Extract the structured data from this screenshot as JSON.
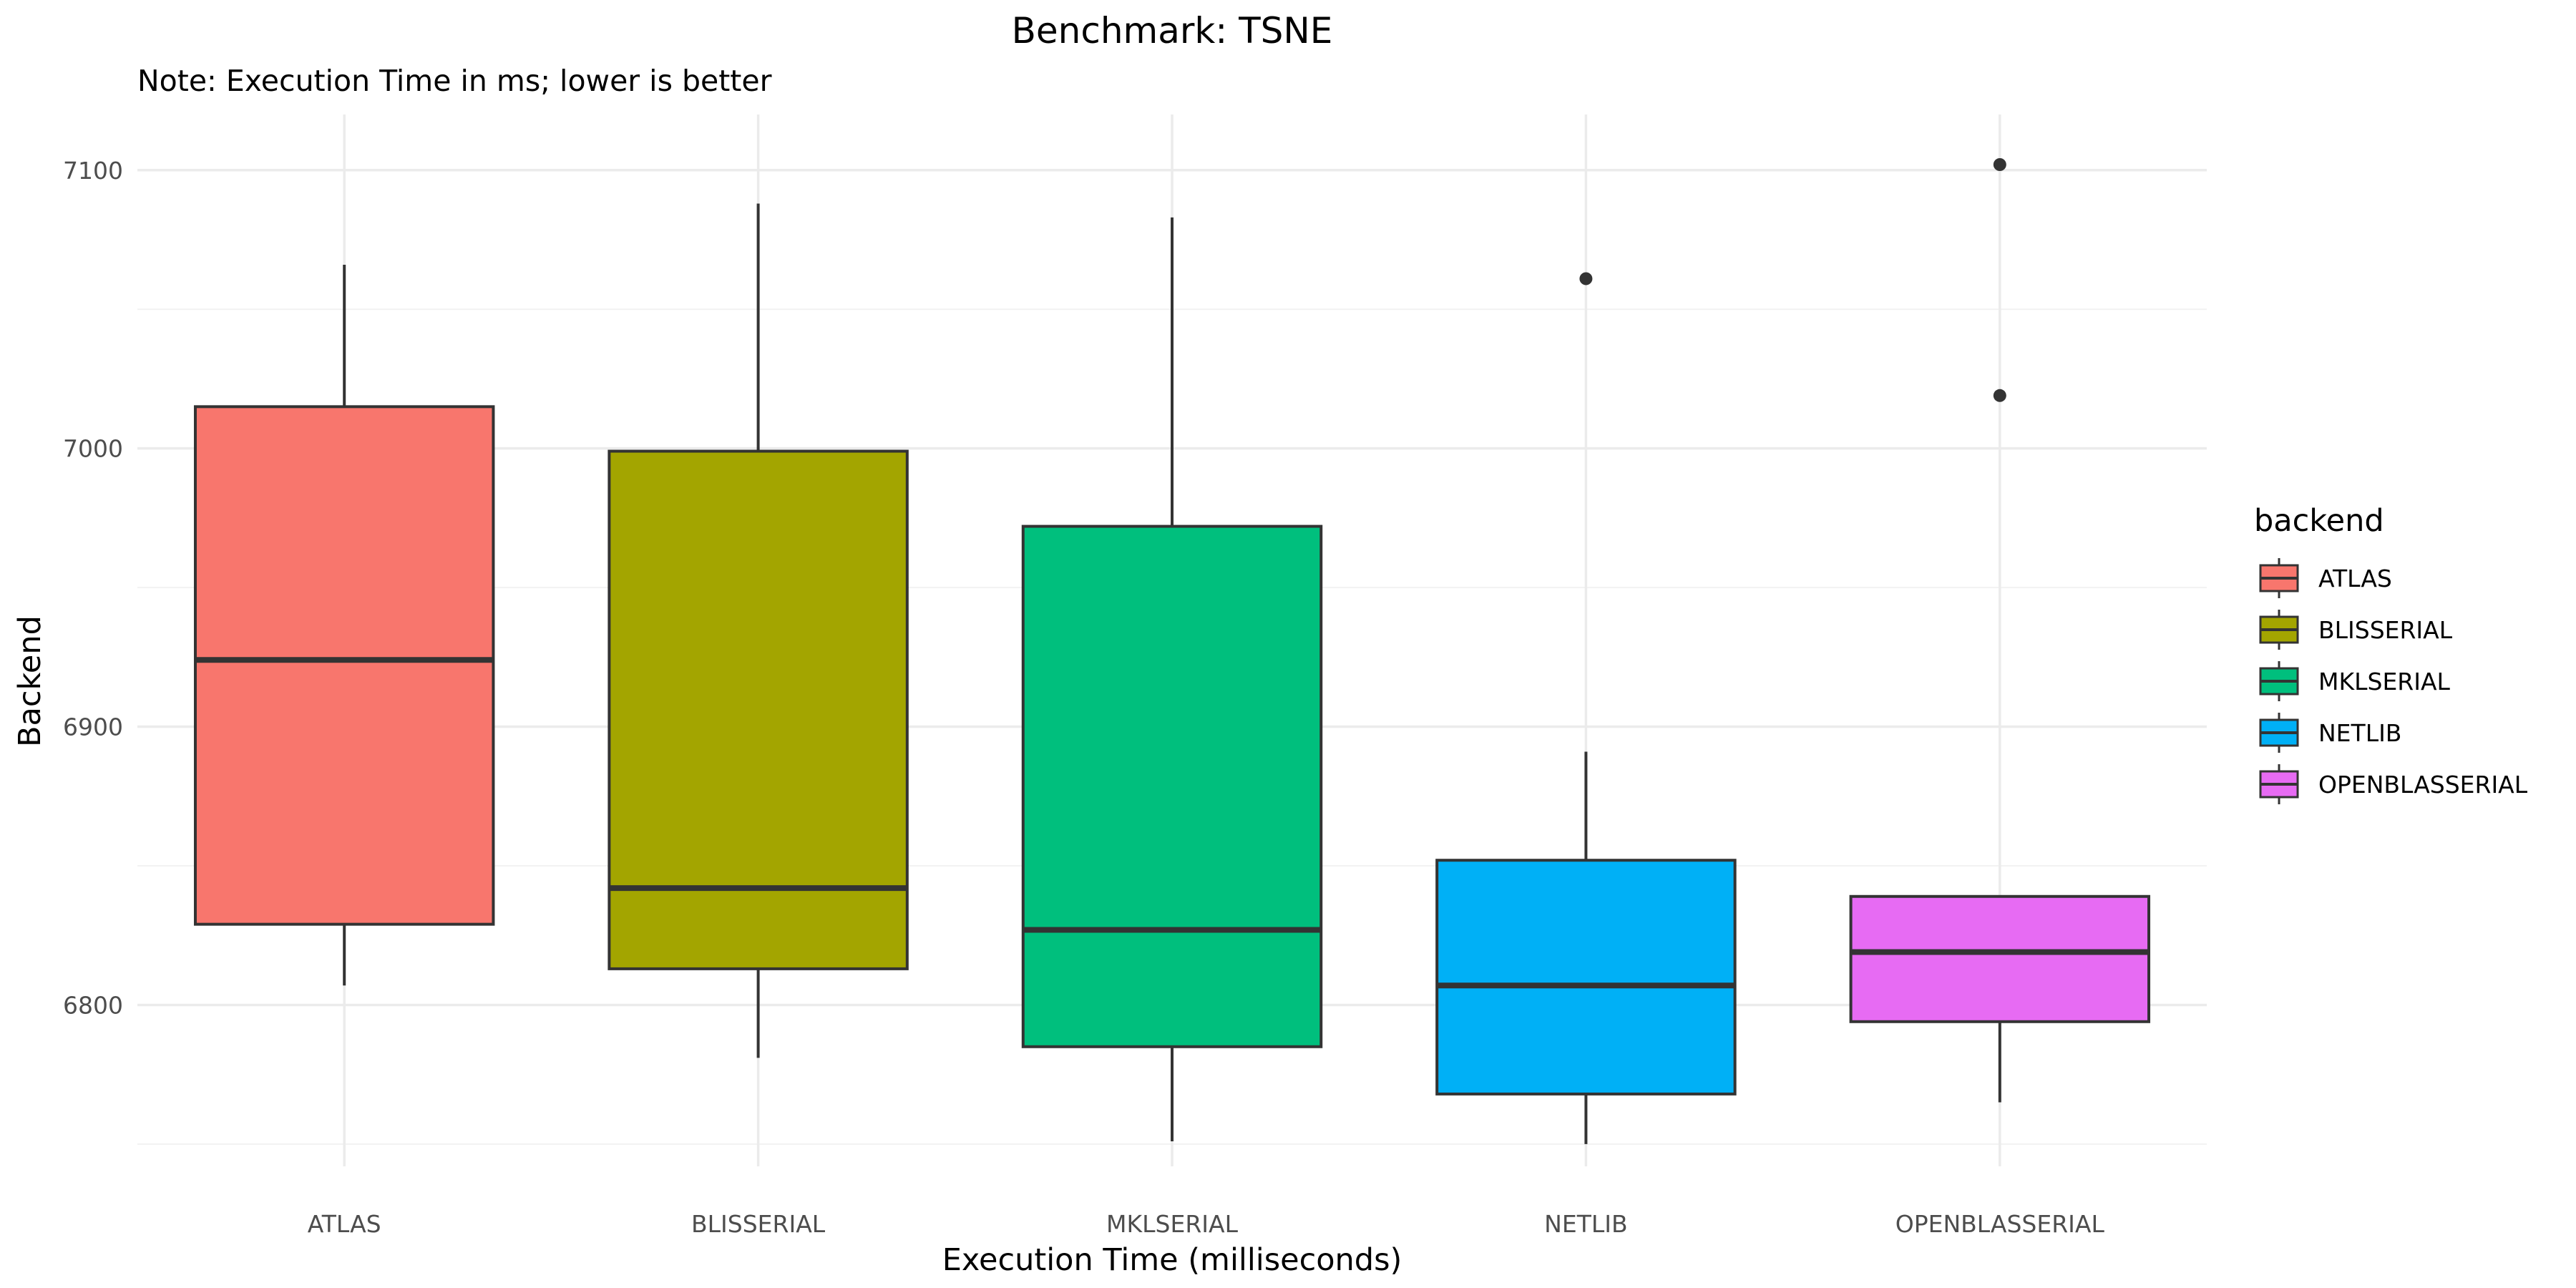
{
  "chart_data": {
    "type": "boxplot",
    "title": "Benchmark: TSNE",
    "subtitle": "Note: Execution Time in ms; lower is better",
    "xlabel": "Execution Time (milliseconds)",
    "ylabel": "Backend",
    "categories": [
      "ATLAS",
      "BLISSERIAL",
      "MKLSERIAL",
      "NETLIB",
      "OPENBLASSERIAL"
    ],
    "ylim": [
      6742,
      7120
    ],
    "y_ticks": [
      6800,
      6900,
      7000,
      7100
    ],
    "y_minor_ticks": [
      6750,
      6850,
      6950,
      7050
    ],
    "grid": true,
    "legend": {
      "title": "backend",
      "position": "right",
      "entries": [
        "ATLAS",
        "BLISSERIAL",
        "MKLSERIAL",
        "NETLIB",
        "OPENBLASSERIAL"
      ]
    },
    "series": [
      {
        "name": "ATLAS",
        "color": "#F8766D",
        "min": 6807,
        "q1": 6829,
        "median": 6924,
        "q3": 7015,
        "max": 7066,
        "outliers": []
      },
      {
        "name": "BLISSERIAL",
        "color": "#A3A500",
        "min": 6781,
        "q1": 6813,
        "median": 6842,
        "q3": 6999,
        "max": 7088,
        "outliers": []
      },
      {
        "name": "MKLSERIAL",
        "color": "#00BF7D",
        "min": 6751,
        "q1": 6785,
        "median": 6827,
        "q3": 6972,
        "max": 7083,
        "outliers": []
      },
      {
        "name": "NETLIB",
        "color": "#00B0F6",
        "min": 6750,
        "q1": 6768,
        "median": 6807,
        "q3": 6852,
        "max": 6891,
        "outliers": [
          7061
        ]
      },
      {
        "name": "OPENBLASSERIAL",
        "color": "#E76BF3",
        "min": 6765,
        "q1": 6794,
        "median": 6819,
        "q3": 6839,
        "max": 6839,
        "outliers": [
          7019,
          7102
        ]
      }
    ]
  }
}
